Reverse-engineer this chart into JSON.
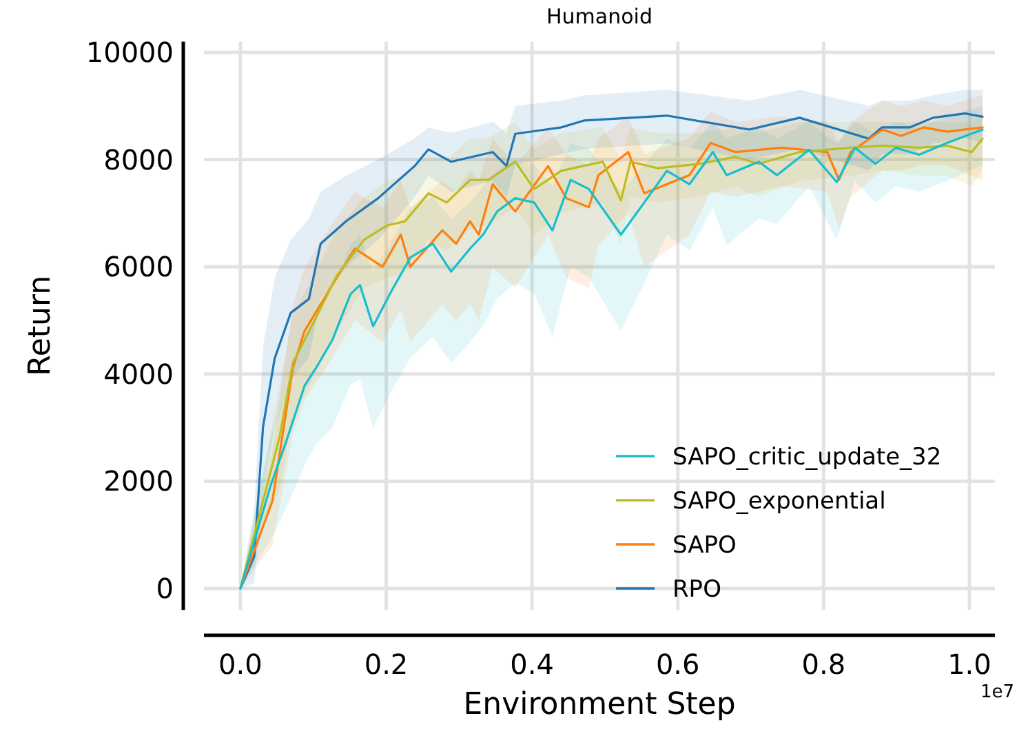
{
  "chart_data": {
    "type": "line",
    "title": "Humanoid",
    "xlabel": "Environment Step",
    "ylabel": "Return",
    "annotations": [
      "1e7"
    ],
    "xlim": [
      -0.05,
      1.035
    ],
    "ylim": [
      -400,
      10200
    ],
    "xticks": [
      {
        "value": 0,
        "label": "0.0"
      },
      {
        "value": 0.2,
        "label": "0.2"
      },
      {
        "value": 0.4,
        "label": "0.4"
      },
      {
        "value": 0.6,
        "label": "0.6"
      },
      {
        "value": 0.8,
        "label": "0.8"
      },
      {
        "value": 1,
        "label": "1.0"
      }
    ],
    "yticks": [
      0,
      2000,
      4000,
      6000,
      8000,
      10000
    ],
    "grid": true,
    "legend": "bottom right",
    "line_style": "solid",
    "marker": "none",
    "series": [
      {
        "name": "SAPO_critic_update_32",
        "color": "#17becf",
        "x": [
          0,
          0.041,
          0.063,
          0.088,
          0.104,
          0.126,
          0.151,
          0.164,
          0.182,
          0.208,
          0.233,
          0.264,
          0.289,
          0.315,
          0.333,
          0.352,
          0.377,
          0.403,
          0.428,
          0.453,
          0.478,
          0.522,
          0.554,
          0.585,
          0.616,
          0.648,
          0.667,
          0.711,
          0.736,
          0.78,
          0.818,
          0.843,
          0.871,
          0.899,
          0.931,
          0.969,
          1.018
        ],
        "values": [
          0,
          1900,
          2750,
          3780,
          4120,
          4630,
          5490,
          5660,
          4890,
          5570,
          6170,
          6430,
          5910,
          6340,
          6600,
          7030,
          7280,
          7200,
          6680,
          7620,
          7450,
          6600,
          7200,
          7790,
          7540,
          8140,
          7710,
          7960,
          7710,
          8180,
          7580,
          8220,
          7920,
          8220,
          8090,
          8310,
          8560
        ],
        "upper": [
          0,
          2800,
          3700,
          4700,
          5100,
          5600,
          6400,
          6600,
          5900,
          6500,
          7100,
          7300,
          6900,
          7200,
          7500,
          7800,
          8000,
          7900,
          7500,
          8300,
          8200,
          7400,
          7900,
          8400,
          8200,
          8700,
          8400,
          8600,
          8400,
          8700,
          8300,
          8700,
          8500,
          8700,
          8600,
          8800,
          9000
        ],
        "lower": [
          0,
          900,
          1500,
          2300,
          2700,
          3000,
          3800,
          3900,
          3000,
          3700,
          4300,
          4700,
          4200,
          4600,
          4900,
          5400,
          5700,
          5500,
          4700,
          6000,
          5800,
          4800,
          5700,
          6600,
          6300,
          7100,
          6400,
          6900,
          6800,
          7500,
          6500,
          7600,
          7200,
          7500,
          7400,
          7600,
          7900
        ]
      },
      {
        "name": "SAPO_exponential",
        "color": "#bcbd22",
        "x": [
          0,
          0.054,
          0.072,
          0.107,
          0.132,
          0.17,
          0.201,
          0.226,
          0.258,
          0.283,
          0.315,
          0.34,
          0.377,
          0.403,
          0.44,
          0.497,
          0.522,
          0.535,
          0.572,
          0.629,
          0.679,
          0.711,
          0.767,
          0.837,
          0.881,
          0.931,
          0.969,
          1.003,
          1.018
        ],
        "values": [
          0,
          2840,
          4210,
          5140,
          5830,
          6510,
          6770,
          6850,
          7370,
          7200,
          7620,
          7620,
          7960,
          7450,
          7790,
          7960,
          7240,
          7960,
          7840,
          7920,
          8050,
          7920,
          8140,
          8220,
          8260,
          8220,
          8260,
          8140,
          8390
        ],
        "upper": [
          0,
          3800,
          5100,
          6000,
          6700,
          7300,
          7600,
          7700,
          8100,
          8000,
          8400,
          8400,
          8700,
          8200,
          8500,
          8600,
          8000,
          8600,
          8500,
          8500,
          8600,
          8500,
          8700,
          8700,
          8700,
          8700,
          8700,
          8700,
          8900
        ],
        "lower": [
          0,
          1900,
          3200,
          4100,
          4800,
          5600,
          5800,
          5900,
          6500,
          6300,
          6700,
          6800,
          7100,
          6600,
          7000,
          7200,
          6400,
          7300,
          7200,
          7300,
          7500,
          7300,
          7600,
          7700,
          7800,
          7700,
          7700,
          7500,
          7800
        ]
      },
      {
        "name": "SAPO",
        "color": "#ff7f0e",
        "x": [
          0,
          0.044,
          0.072,
          0.088,
          0.126,
          0.157,
          0.195,
          0.22,
          0.233,
          0.277,
          0.296,
          0.315,
          0.327,
          0.346,
          0.377,
          0.422,
          0.447,
          0.478,
          0.491,
          0.532,
          0.554,
          0.616,
          0.645,
          0.679,
          0.742,
          0.805,
          0.821,
          0.837,
          0.881,
          0.906,
          0.937,
          0.969,
          1.018
        ],
        "values": [
          0,
          1640,
          4120,
          4800,
          5660,
          6340,
          6000,
          6600,
          6000,
          6680,
          6430,
          6850,
          6600,
          7540,
          7030,
          7880,
          7280,
          7110,
          7710,
          8140,
          7370,
          7710,
          8310,
          8140,
          8220,
          8140,
          7620,
          8140,
          8560,
          8440,
          8600,
          8520,
          8600
        ],
        "upper": [
          0,
          2600,
          5300,
          6000,
          6800,
          7400,
          7100,
          7600,
          7100,
          7600,
          7400,
          7800,
          7600,
          8400,
          7900,
          8600,
          8100,
          7900,
          8400,
          8800,
          8100,
          8400,
          8900,
          8700,
          8800,
          8700,
          8300,
          8700,
          9100,
          9000,
          9100,
          9000,
          9200
        ],
        "lower": [
          0,
          800,
          2900,
          3500,
          4300,
          5000,
          4600,
          5200,
          4600,
          5300,
          5000,
          5300,
          5000,
          6000,
          5600,
          6600,
          5800,
          5600,
          6400,
          7000,
          6000,
          6600,
          7400,
          7300,
          7500,
          7400,
          6700,
          7300,
          7800,
          7800,
          7900,
          7900,
          7600
        ]
      },
      {
        "name": "RPO",
        "color": "#1f77b4",
        "x": [
          0,
          0.019,
          0.031,
          0.047,
          0.069,
          0.094,
          0.11,
          0.145,
          0.189,
          0.239,
          0.258,
          0.289,
          0.346,
          0.365,
          0.377,
          0.44,
          0.472,
          0.585,
          0.698,
          0.767,
          0.862,
          0.88,
          0.918,
          0.95,
          0.994,
          1.018
        ],
        "values": [
          0,
          600,
          3010,
          4290,
          5140,
          5400,
          6430,
          6850,
          7280,
          7880,
          8190,
          7960,
          8140,
          7880,
          8480,
          8600,
          8730,
          8820,
          8560,
          8780,
          8390,
          8600,
          8600,
          8780,
          8860,
          8800
        ],
        "upper": [
          0,
          1500,
          4500,
          5800,
          6500,
          6900,
          7400,
          7700,
          8000,
          8400,
          8600,
          8500,
          8700,
          8500,
          9000,
          9100,
          9200,
          9300,
          9100,
          9300,
          9000,
          9100,
          9100,
          9200,
          9300,
          9300
        ],
        "lower": [
          0,
          100,
          1800,
          3000,
          3900,
          4300,
          5400,
          6000,
          6500,
          7300,
          7700,
          7400,
          7600,
          7300,
          7900,
          8100,
          8200,
          8300,
          8000,
          8200,
          7800,
          8100,
          8100,
          8300,
          8400,
          8300
        ]
      }
    ]
  }
}
